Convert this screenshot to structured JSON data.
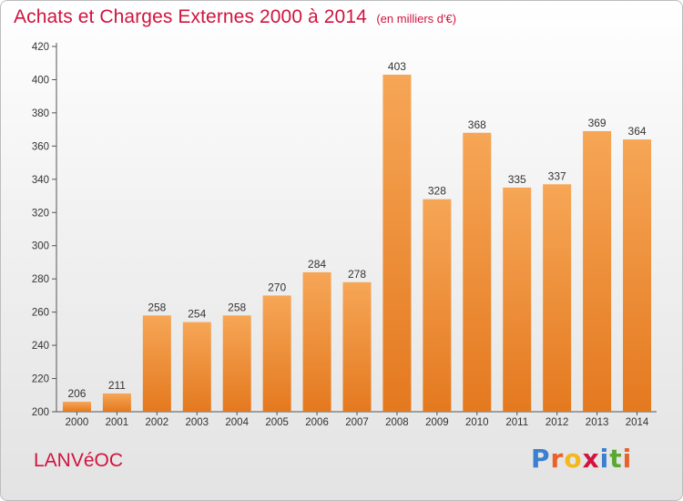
{
  "header": {
    "title": "Achats et Charges Externes 2000 à 2014",
    "unit_note": "(en milliers d'€)"
  },
  "footer": {
    "place": "LANVéOC",
    "logo_text": "Proxiti",
    "logo_colors": [
      "#3b7fd0",
      "#e8622a",
      "#f2b81c",
      "#d0143e",
      "#3b7fd0",
      "#5aa832",
      "#e8622a"
    ]
  },
  "colors": {
    "accent": "#d0143e",
    "bar_light": "#f6a656",
    "bar_dark": "#e4791f"
  },
  "chart_data": {
    "type": "bar",
    "categories": [
      "2000",
      "2001",
      "2002",
      "2003",
      "2004",
      "2005",
      "2006",
      "2007",
      "2008",
      "2009",
      "2010",
      "2011",
      "2012",
      "2013",
      "2014"
    ],
    "values": [
      206,
      211,
      258,
      254,
      258,
      270,
      284,
      278,
      403,
      328,
      368,
      335,
      337,
      369,
      364
    ],
    "title": "Achats et Charges Externes 2000 à 2014",
    "subtitle": "(en milliers d'€)",
    "xlabel": "",
    "ylabel": "",
    "ylim": [
      200,
      420
    ],
    "yticks": [
      200,
      220,
      240,
      260,
      280,
      300,
      320,
      340,
      360,
      380,
      400,
      420
    ],
    "grid": false,
    "data_labels": true
  }
}
